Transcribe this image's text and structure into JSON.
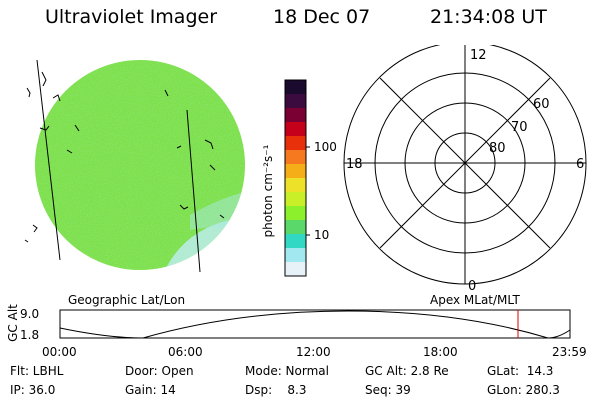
{
  "header": {
    "title": "Ultraviolet Imager",
    "date": "18 Dec 07",
    "time": "21:34:08 UT"
  },
  "colorbar": {
    "unit_label": "photon cm⁻²s⁻¹",
    "tick_100": "100",
    "tick_10": "10",
    "colors_top_to_bottom": [
      "#1a0a2e",
      "#3b0a3f",
      "#7a0034",
      "#c4001a",
      "#e8300a",
      "#f6781f",
      "#f5ae18",
      "#eee12a",
      "#c9ef28",
      "#8cf02c",
      "#5ad96a",
      "#33d8c5",
      "#a2e8f0",
      "#e6f2f7"
    ]
  },
  "geo_panel": {
    "label": "Geographic Lat/Lon",
    "disk_color": "#7fe04a",
    "haze_color": "#bfeef4"
  },
  "polar_panel": {
    "label": "Apex MLat/MLT",
    "lat_labels": [
      "60",
      "70",
      "80"
    ],
    "mlt_labels": {
      "top": "12",
      "right": "6",
      "bottom": "0",
      "left": "18"
    }
  },
  "timeline": {
    "ylabel": "GC Alt",
    "y_ticks": [
      "9.0",
      "1.8"
    ],
    "x_ticks": [
      "00:00",
      "06:00",
      "12:00",
      "18:00",
      "23:59"
    ],
    "marker_color": "#e00000"
  },
  "info": {
    "flt": "Flt: LBHL",
    "ip": "IP: 36.0",
    "door": "Door: Open",
    "gain": "Gain: 14",
    "mode": "Mode: Normal",
    "dsp": "Dsp:    8.3",
    "gcalt": "GC Alt: 2.8 Re",
    "seq": "Seq: 39",
    "glat": "GLat:  14.3",
    "glon": "GLon: 280.3"
  }
}
